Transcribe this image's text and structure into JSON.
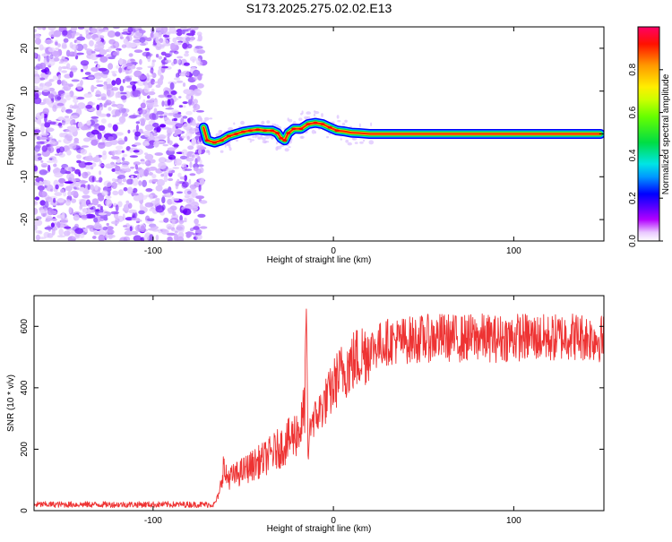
{
  "title": "S173.2025.275.02.02.E13",
  "chart_data": [
    {
      "type": "heatmap",
      "title": "S173.2025.275.02.02.E13",
      "xlabel": "Height of straight line (km)",
      "ylabel": "Frequency (Hz)",
      "xlim": [
        -166,
        150
      ],
      "ylim": [
        -25,
        25
      ],
      "xticks": [
        -100,
        0,
        100
      ],
      "yticks": [
        -20,
        -10,
        0,
        10,
        20
      ],
      "grid": false,
      "noise_region_x": [
        -166,
        -72
      ],
      "ridge": {
        "x": [
          -72,
          -70,
          -66,
          -62,
          -58,
          -54,
          -50,
          -46,
          -42,
          -38,
          -34,
          -31,
          -29,
          -27,
          -25,
          -22,
          -18,
          -14,
          -10,
          -6,
          -2,
          2,
          6,
          10,
          14,
          20,
          30,
          40,
          60,
          80,
          100,
          120,
          140,
          148
        ],
        "y": [
          1.5,
          -1.5,
          -2.0,
          -1.5,
          -0.5,
          0.0,
          0.5,
          0.8,
          1.0,
          0.8,
          0.8,
          0.2,
          -1.0,
          -1.5,
          0.2,
          1.2,
          1.2,
          2.3,
          2.6,
          2.3,
          1.5,
          0.8,
          0.6,
          0.3,
          0.2,
          0.0,
          0.0,
          0.0,
          0.0,
          0.0,
          0.0,
          0.0,
          0.0,
          0.0
        ]
      },
      "colorbar": {
        "label": "Normalized spectral amplitude",
        "range": [
          0,
          1
        ],
        "ticks": [
          "0.0",
          "0.2",
          "0.4",
          "0.6",
          "0.8"
        ],
        "colormap": [
          "#ffffff",
          "#cc00ff",
          "#6600ff",
          "#0000ff",
          "#00ccff",
          "#00ff66",
          "#99ff00",
          "#ffff00",
          "#ff9900",
          "#ff0000",
          "#ff0066"
        ]
      }
    },
    {
      "type": "line",
      "xlabel": "Height of straight line (km)",
      "ylabel": "SNR (10 * v/v)",
      "xlim": [
        -166,
        150
      ],
      "ylim": [
        0,
        700
      ],
      "xticks": [
        -100,
        0,
        100
      ],
      "yticks": [
        0,
        200,
        400,
        600
      ],
      "grid": false,
      "series": [
        {
          "name": "SNR",
          "color": "#ee3333",
          "x": [
            -166,
            -140,
            -120,
            -100,
            -80,
            -66,
            -63,
            -61,
            -60,
            -56,
            -50,
            -44,
            -38,
            -32,
            -26,
            -22,
            -18,
            -16,
            -15,
            -14,
            -13,
            -12,
            -10,
            -6,
            -2,
            2,
            6,
            10,
            14,
            18,
            22,
            26,
            30,
            40,
            50,
            60,
            70,
            80,
            90,
            100,
            110,
            120,
            130,
            140,
            150
          ],
          "y": [
            20,
            20,
            20,
            20,
            20,
            20,
            60,
            150,
            110,
            110,
            130,
            150,
            170,
            195,
            220,
            245,
            270,
            330,
            600,
            150,
            290,
            300,
            300,
            340,
            380,
            430,
            460,
            480,
            500,
            520,
            530,
            540,
            550,
            555,
            560,
            565,
            560,
            565,
            560,
            565,
            565,
            560,
            570,
            565,
            560
          ]
        }
      ]
    }
  ]
}
